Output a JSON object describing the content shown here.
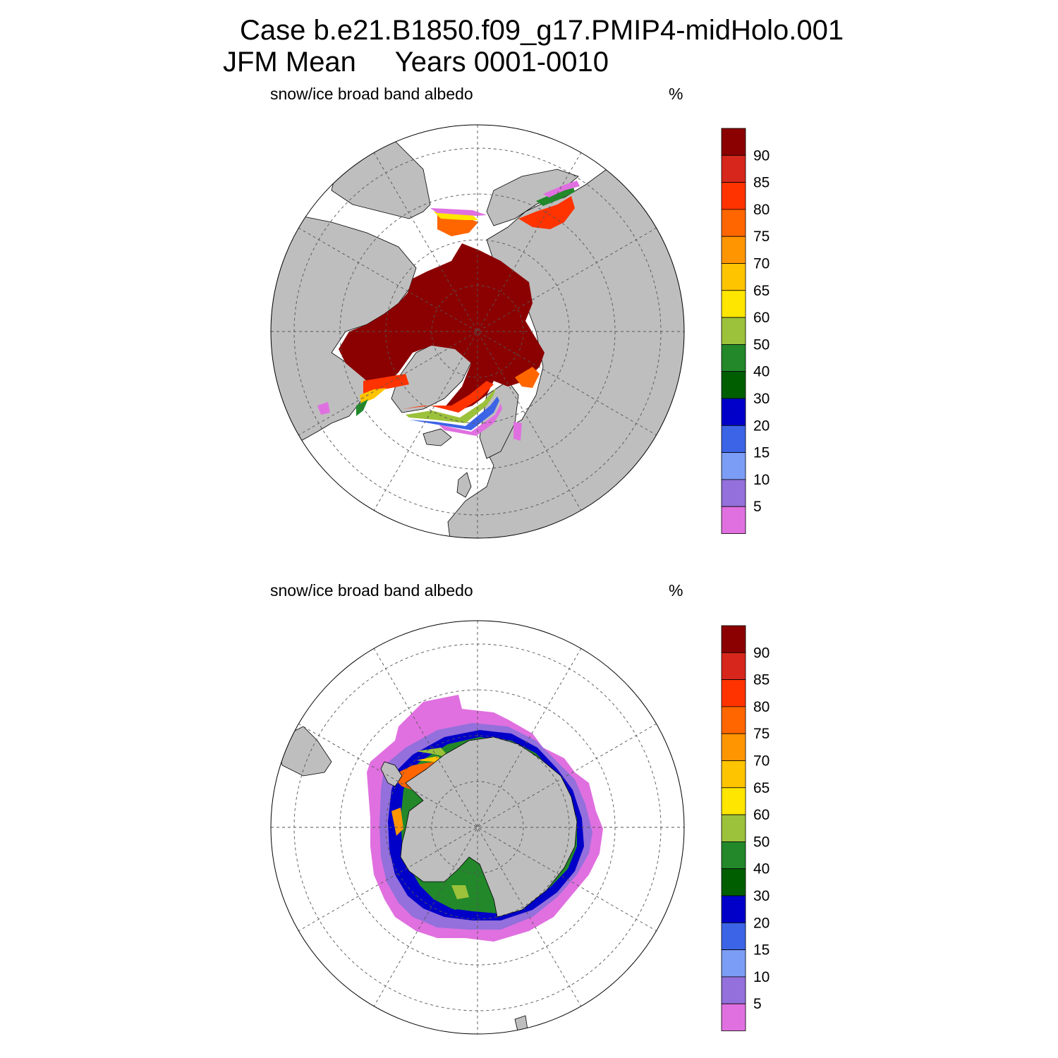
{
  "title": {
    "line1": "Case b.e21.B1850.f09_g17.PMIP4-midHolo.001",
    "line2": "JFM Mean     Years 0001-0010"
  },
  "panels": [
    {
      "name": "north",
      "label": "snow/ice broad band albedo",
      "unit": "%"
    },
    {
      "name": "south",
      "label": "snow/ice broad band albedo",
      "unit": "%"
    }
  ],
  "colorbar": {
    "labels": [
      "90",
      "85",
      "80",
      "75",
      "70",
      "65",
      "60",
      "50",
      "40",
      "30",
      "20",
      "15",
      "10",
      "5"
    ],
    "colors": [
      "#8b0000",
      "#d7261b",
      "#ff3300",
      "#ff6600",
      "#ff9500",
      "#ffc400",
      "#ffe600",
      "#9cc13a",
      "#22882a",
      "#005e00",
      "#0000c8",
      "#3c64e6",
      "#7b9df5",
      "#9370db",
      "#e070e0"
    ]
  },
  "colors": {
    "land": "#bebebe",
    "ocean": "#ffffff",
    "grid": "#555555"
  }
}
